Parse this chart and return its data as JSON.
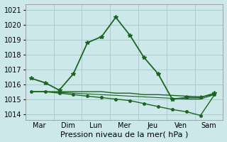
{
  "title": "",
  "xlabel": "Pression niveau de la mer( hPa )",
  "xtick_labels": [
    "Mar",
    "Dim",
    "Lun",
    "Mer",
    "Jeu",
    "Ven",
    "Sam"
  ],
  "ytick_values": [
    1014,
    1015,
    1016,
    1017,
    1018,
    1019,
    1020,
    1021
  ],
  "ylim": [
    1013.6,
    1021.4
  ],
  "xlim": [
    0,
    7
  ],
  "background_color": "#cce8ea",
  "grid_color": "#aacccc",
  "line_color": "#1a6620",
  "lines": [
    {
      "x": [
        0.2,
        0.7,
        1.2,
        1.7,
        2.2,
        2.7,
        3.2,
        3.7,
        4.2,
        4.7,
        5.2,
        5.7,
        6.2,
        6.7
      ],
      "y": [
        1016.4,
        1016.1,
        1015.6,
        1016.7,
        1018.8,
        1019.2,
        1020.5,
        1019.3,
        1017.8,
        1016.7,
        1015.0,
        1015.1,
        1015.1,
        1015.4
      ],
      "marker": "*",
      "markersize": 4,
      "linewidth": 1.3
    },
    {
      "x": [
        0.2,
        0.7,
        1.2,
        1.7,
        2.2,
        2.7,
        3.2,
        3.7,
        4.2,
        4.7,
        5.2,
        5.7,
        6.2,
        6.7
      ],
      "y": [
        1015.5,
        1015.5,
        1015.4,
        1015.3,
        1015.2,
        1015.1,
        1015.0,
        1014.9,
        1014.7,
        1014.5,
        1014.3,
        1014.15,
        1013.9,
        1015.3
      ],
      "marker": "o",
      "markersize": 2.5,
      "linewidth": 1.0
    },
    {
      "x": [
        0.2,
        0.7,
        1.2,
        1.7,
        2.2,
        2.7,
        3.2,
        3.7,
        4.2,
        4.7,
        5.2,
        5.7,
        6.2,
        6.7
      ],
      "y": [
        1015.5,
        1015.5,
        1015.5,
        1015.5,
        1015.5,
        1015.5,
        1015.4,
        1015.4,
        1015.3,
        1015.3,
        1015.25,
        1015.2,
        1015.15,
        1015.3
      ],
      "marker": null,
      "markersize": 0,
      "linewidth": 1.0
    },
    {
      "x": [
        0.2,
        0.7,
        1.2,
        1.7,
        2.2,
        2.7,
        3.2,
        3.7,
        4.2,
        4.7,
        5.2,
        5.7,
        6.2,
        6.7
      ],
      "y": [
        1015.5,
        1015.5,
        1015.45,
        1015.4,
        1015.35,
        1015.3,
        1015.25,
        1015.2,
        1015.15,
        1015.1,
        1015.05,
        1015.0,
        1015.0,
        1015.3
      ],
      "marker": null,
      "markersize": 0,
      "linewidth": 0.8
    }
  ],
  "xtick_positions": [
    0.5,
    1.5,
    2.5,
    3.5,
    4.5,
    5.5,
    6.5
  ],
  "xgrid_positions": [
    0,
    1,
    2,
    3,
    4,
    5,
    6,
    7
  ],
  "figsize": [
    3.2,
    2.0
  ],
  "dpi": 100,
  "tick_fontsize": 7,
  "xlabel_fontsize": 8
}
